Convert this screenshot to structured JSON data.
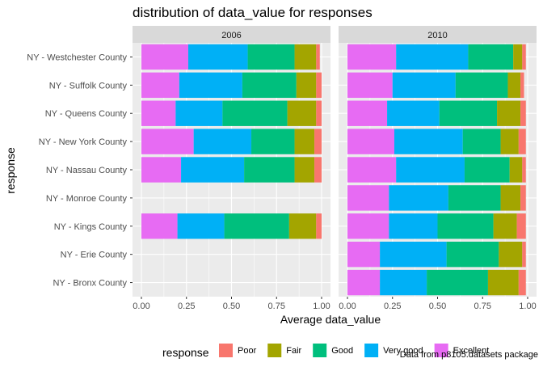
{
  "chart_data": {
    "type": "bar",
    "orientation": "horizontal",
    "stacked": true,
    "title": "distribution of data_value for responses",
    "xlabel": "Average data_value",
    "ylabel": "response",
    "caption": "Data from p8105.datasets package",
    "xlim": [
      0,
      1
    ],
    "x_ticks": [
      "0.00",
      "0.25",
      "0.50",
      "0.75",
      "1.00"
    ],
    "x_tick_values": [
      0,
      0.25,
      0.5,
      0.75,
      1.0
    ],
    "grid": true,
    "legend": {
      "title": "response",
      "position": "bottom",
      "entries": [
        "Poor",
        "Fair",
        "Good",
        "Very good",
        "Excellent"
      ]
    },
    "categories": [
      "NY - Westchester County",
      "NY - Suffolk County",
      "NY - Queens County",
      "NY - New York County",
      "NY - Nassau County",
      "NY - Monroe County",
      "NY - Kings County",
      "NY - Erie County",
      "NY - Bronx County"
    ],
    "series_colors": {
      "Poor": "#F8766D",
      "Fair": "#A3A500",
      "Good": "#00BF7D",
      "Very good": "#00B0F6",
      "Excellent": "#E76BF3"
    },
    "panels": [
      {
        "label": "2006",
        "series": [
          {
            "name": "Excellent",
            "values": [
              0.26,
              0.21,
              0.19,
              0.29,
              0.22,
              null,
              0.2,
              null,
              null
            ]
          },
          {
            "name": "Very good",
            "values": [
              0.33,
              0.35,
              0.26,
              0.32,
              0.35,
              null,
              0.26,
              null,
              null
            ]
          },
          {
            "name": "Good",
            "values": [
              0.26,
              0.3,
              0.36,
              0.24,
              0.28,
              null,
              0.36,
              null,
              null
            ]
          },
          {
            "name": "Fair",
            "values": [
              0.12,
              0.11,
              0.16,
              0.11,
              0.11,
              null,
              0.15,
              null,
              null
            ]
          },
          {
            "name": "Poor",
            "values": [
              0.02,
              0.03,
              0.03,
              0.04,
              0.04,
              null,
              0.03,
              null,
              null
            ]
          }
        ]
      },
      {
        "label": "2010",
        "series": [
          {
            "name": "Excellent",
            "values": [
              0.27,
              0.25,
              0.22,
              0.26,
              0.27,
              0.23,
              0.23,
              0.18,
              0.18
            ]
          },
          {
            "name": "Very good",
            "values": [
              0.4,
              0.35,
              0.29,
              0.38,
              0.38,
              0.33,
              0.27,
              0.37,
              0.26
            ]
          },
          {
            "name": "Good",
            "values": [
              0.25,
              0.29,
              0.32,
              0.21,
              0.25,
              0.29,
              0.31,
              0.29,
              0.34
            ]
          },
          {
            "name": "Fair",
            "values": [
              0.05,
              0.07,
              0.13,
              0.1,
              0.07,
              0.11,
              0.13,
              0.13,
              0.17
            ]
          },
          {
            "name": "Poor",
            "values": [
              0.02,
              0.02,
              0.03,
              0.04,
              0.02,
              0.03,
              0.05,
              0.02,
              0.04
            ]
          }
        ]
      }
    ]
  }
}
